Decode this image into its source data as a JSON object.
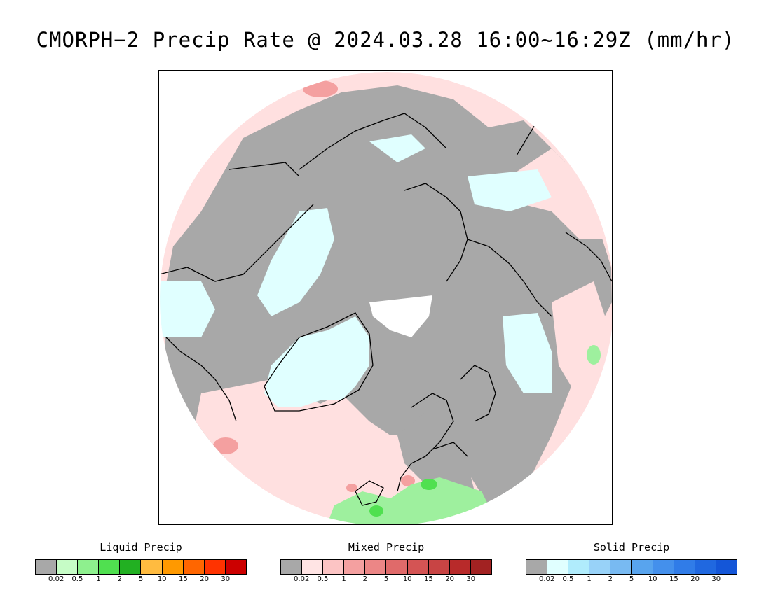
{
  "title": "CMORPH−2 Precip Rate @ 2024.03.28 16:00~16:29Z (mm/hr)",
  "map": {
    "projection": "north-polar-stereographic",
    "colors": {
      "no_precip": "#a8a8a8",
      "mixed_light": "#ffe0e0",
      "mixed_mid": "#f4a0a0",
      "mixed_dark": "#e07070",
      "solid_light": "#e0ffff",
      "liquid_light": "#9ef09e",
      "liquid_mid": "#50e050",
      "no_data": "#ffffff",
      "coastline": "#000000"
    }
  },
  "legends": [
    {
      "title": "Liquid Precip",
      "colors": [
        "#a8a8a8",
        "#c6fcc6",
        "#8ef08e",
        "#50e050",
        "#22b022",
        "#ffbb40",
        "#ff9900",
        "#ff6600",
        "#ff3300",
        "#cc0000"
      ],
      "ticks": [
        "0.02",
        "0.5",
        "1",
        "2",
        "5",
        "10",
        "15",
        "20",
        "30"
      ]
    },
    {
      "title": "Mixed Precip",
      "colors": [
        "#a8a8a8",
        "#ffe4e4",
        "#fcc4c4",
        "#f4a0a0",
        "#ec8686",
        "#e06a6a",
        "#d45454",
        "#c84444",
        "#b82a2a",
        "#a22222"
      ],
      "ticks": [
        "0.02",
        "0.5",
        "1",
        "2",
        "5",
        "10",
        "15",
        "20",
        "30"
      ]
    },
    {
      "title": "Solid Precip",
      "colors": [
        "#a8a8a8",
        "#e0ffff",
        "#b0ecfc",
        "#98d2f8",
        "#78baf2",
        "#58a4ee",
        "#4490ec",
        "#307ce8",
        "#2068e0",
        "#1456d8"
      ],
      "ticks": [
        "0.02",
        "0.5",
        "1",
        "2",
        "5",
        "10",
        "15",
        "20",
        "30"
      ]
    }
  ]
}
